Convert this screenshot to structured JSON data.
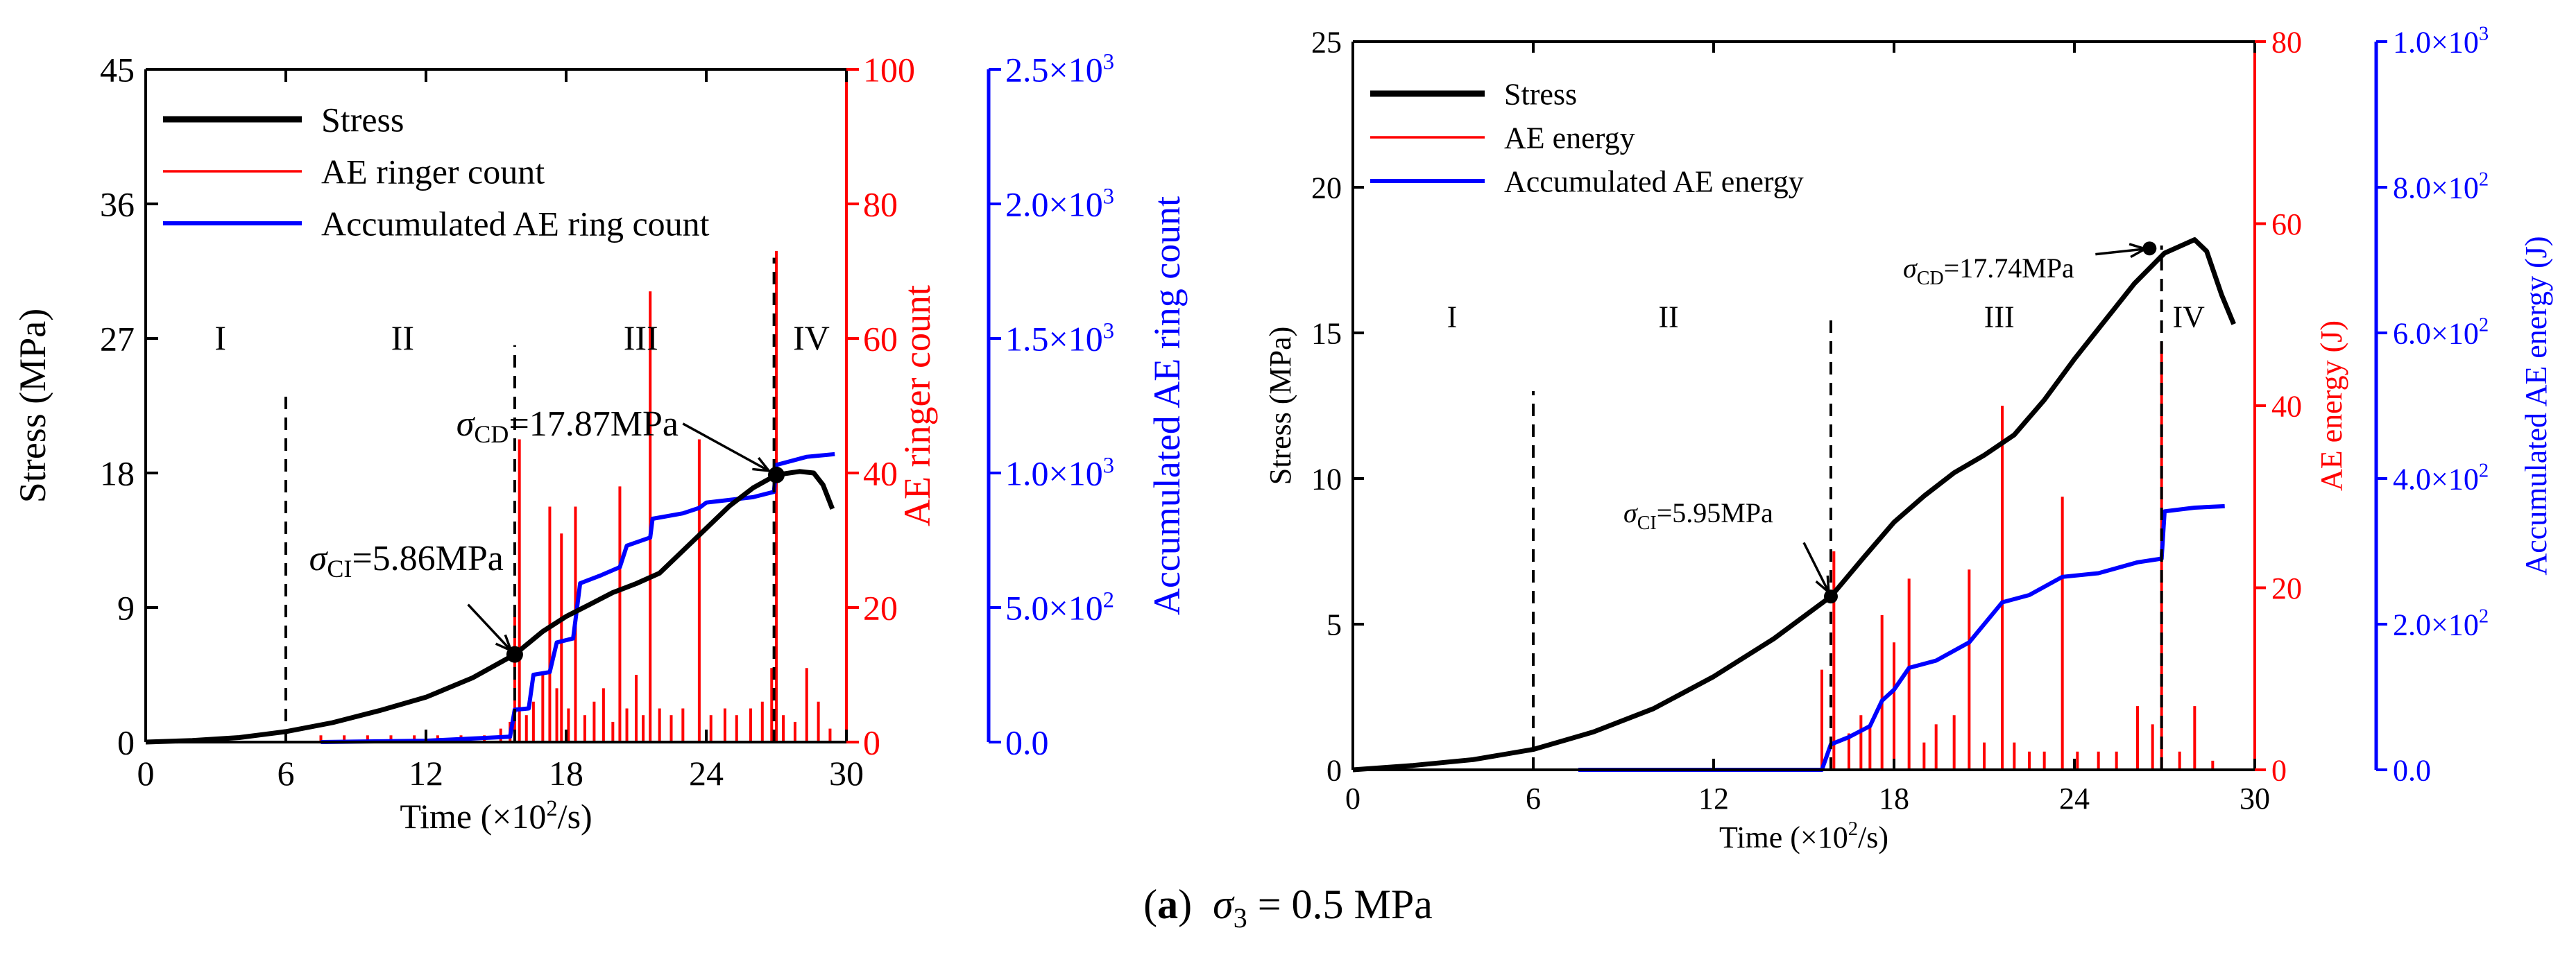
{
  "caption": {
    "label": "a",
    "open": "(",
    "close": ")",
    "symbol": "σ",
    "subscript": "3",
    "value": " = 0.5 MPa"
  },
  "colors": {
    "stress": "#000000",
    "ae": "#ff0000",
    "accum": "#0000ff"
  },
  "chart_data": [
    {
      "type": "line",
      "xlabel_main": "Time (×10",
      "xlabel_sup": "2",
      "xlabel_end": "/s)",
      "ylabel_left": "Stress (MPa)",
      "ylabel_right1": "AE ringer count",
      "ylabel_right2": "Accumulated AE ring count",
      "xlim": [
        0,
        30
      ],
      "ylim_left": [
        0,
        45
      ],
      "ylim_right1": [
        0,
        100
      ],
      "ylim_right2": [
        0,
        2500
      ],
      "xticks": [
        "0",
        "6",
        "12",
        "18",
        "24",
        "30"
      ],
      "xtick_values": [
        0,
        6,
        12,
        18,
        24,
        30
      ],
      "yticks_left": [
        "0",
        "9",
        "18",
        "27",
        "36",
        "45"
      ],
      "yticks_left_values": [
        0,
        9,
        18,
        27,
        36,
        45
      ],
      "yticks_right1": [
        "0",
        "20",
        "40",
        "60",
        "80",
        "100"
      ],
      "yticks_right1_values": [
        0,
        20,
        40,
        60,
        80,
        100
      ],
      "yticks_right2": [
        "0.0",
        "5.0×10",
        "1.0×10",
        "1.5×10",
        "2.0×10",
        "2.5×10"
      ],
      "yticks_right2_sup": [
        "",
        "2",
        "3",
        "3",
        "3",
        "3"
      ],
      "yticks_right2_values": [
        0,
        500,
        1000,
        1500,
        2000,
        2500
      ],
      "legend": [
        "Stress",
        "AE ringer count",
        "Accumulated AE ring count"
      ],
      "stages": [
        {
          "label": "I",
          "x": 3.2
        },
        {
          "label": "II",
          "x": 11.0
        },
        {
          "label": "III",
          "x": 21.2
        },
        {
          "label": "IV",
          "x": 28.5
        }
      ],
      "stage_dividers": [
        6.0,
        15.8,
        26.9
      ],
      "annotations": [
        {
          "sym": "σ",
          "sub": "CI",
          "text": "=5.86MPa",
          "x": 15.8,
          "y": 5.86,
          "tx": 7.0,
          "ty": 11.5
        },
        {
          "sym": "σ",
          "sub": "CD",
          "text": "=17.87MPa",
          "x": 27.0,
          "y": 17.87,
          "tx": 13.3,
          "ty": 20.5
        }
      ],
      "series": [
        {
          "name": "Stress",
          "axis": "left",
          "points": [
            [
              0,
              0
            ],
            [
              2,
              0.1
            ],
            [
              4,
              0.3
            ],
            [
              6,
              0.7
            ],
            [
              8,
              1.3
            ],
            [
              10,
              2.1
            ],
            [
              12,
              3.0
            ],
            [
              14,
              4.3
            ],
            [
              15.8,
              5.86
            ],
            [
              17,
              7.4
            ],
            [
              18,
              8.4
            ],
            [
              19,
              9.2
            ],
            [
              20,
              10.0
            ],
            [
              21,
              10.6
            ],
            [
              22,
              11.3
            ],
            [
              23,
              12.8
            ],
            [
              24,
              14.3
            ],
            [
              25,
              15.8
            ],
            [
              26,
              17.0
            ],
            [
              27,
              17.87
            ],
            [
              28,
              18.1
            ],
            [
              28.6,
              18.0
            ],
            [
              29,
              17.2
            ],
            [
              29.4,
              15.6
            ]
          ]
        },
        {
          "name": "AE ringer count",
          "axis": "right1",
          "bars": [
            [
              7.5,
              1
            ],
            [
              8.5,
              1
            ],
            [
              9.5,
              1
            ],
            [
              10.5,
              1
            ],
            [
              11.5,
              1
            ],
            [
              12.5,
              1
            ],
            [
              13.5,
              1
            ],
            [
              14.5,
              1
            ],
            [
              15.2,
              2
            ],
            [
              15.6,
              3
            ],
            [
              15.8,
              20
            ],
            [
              16.0,
              45
            ],
            [
              16.3,
              4
            ],
            [
              16.6,
              6
            ],
            [
              17.0,
              10
            ],
            [
              17.3,
              35
            ],
            [
              17.6,
              8
            ],
            [
              17.8,
              31
            ],
            [
              18.1,
              5
            ],
            [
              18.4,
              35
            ],
            [
              18.8,
              4
            ],
            [
              19.2,
              6
            ],
            [
              19.6,
              8
            ],
            [
              20.0,
              3
            ],
            [
              20.3,
              38
            ],
            [
              20.6,
              5
            ],
            [
              21.0,
              10
            ],
            [
              21.3,
              4
            ],
            [
              21.6,
              67
            ],
            [
              22.0,
              5
            ],
            [
              22.5,
              4
            ],
            [
              23.0,
              5
            ],
            [
              23.7,
              45
            ],
            [
              24.2,
              4
            ],
            [
              24.8,
              5
            ],
            [
              25.3,
              4
            ],
            [
              25.9,
              5
            ],
            [
              26.4,
              6
            ],
            [
              26.8,
              11
            ],
            [
              27.0,
              73
            ],
            [
              27.3,
              4
            ],
            [
              27.8,
              3
            ],
            [
              28.3,
              11
            ],
            [
              28.8,
              6
            ],
            [
              29.3,
              2
            ]
          ]
        },
        {
          "name": "Accumulated AE ring count",
          "axis": "right2",
          "points": [
            [
              7.5,
              0
            ],
            [
              12,
              5
            ],
            [
              15.6,
              20
            ],
            [
              15.8,
              120
            ],
            [
              16.4,
              125
            ],
            [
              16.6,
              250
            ],
            [
              17.3,
              260
            ],
            [
              17.6,
              370
            ],
            [
              18.3,
              385
            ],
            [
              18.6,
              590
            ],
            [
              19.5,
              620
            ],
            [
              20.3,
              650
            ],
            [
              20.6,
              730
            ],
            [
              21.6,
              760
            ],
            [
              21.7,
              830
            ],
            [
              23.0,
              850
            ],
            [
              23.7,
              870
            ],
            [
              24.0,
              890
            ],
            [
              26.0,
              910
            ],
            [
              26.9,
              930
            ],
            [
              27.0,
              1030
            ],
            [
              28.3,
              1060
            ],
            [
              29.5,
              1070
            ]
          ]
        }
      ]
    },
    {
      "type": "line",
      "xlabel_main": "Time (×10",
      "xlabel_sup": "2",
      "xlabel_end": "/s)",
      "ylabel_left": "Stress (MPa)",
      "ylabel_right1": "AE energy (J)",
      "ylabel_right2": "Accumulated AE energy (J)",
      "xlim": [
        0,
        30
      ],
      "ylim_left": [
        0,
        25
      ],
      "ylim_right1": [
        0,
        80
      ],
      "ylim_right2": [
        0,
        1000
      ],
      "xticks": [
        "0",
        "6",
        "12",
        "18",
        "24",
        "30"
      ],
      "xtick_values": [
        0,
        6,
        12,
        18,
        24,
        30
      ],
      "yticks_left": [
        "0",
        "5",
        "10",
        "15",
        "20",
        "25"
      ],
      "yticks_left_values": [
        0,
        5,
        10,
        15,
        20,
        25
      ],
      "yticks_right1": [
        "0",
        "20",
        "40",
        "60",
        "80"
      ],
      "yticks_right1_values": [
        0,
        20,
        40,
        60,
        80
      ],
      "yticks_right2": [
        "0.0",
        "2.0×10",
        "4.0×10",
        "6.0×10",
        "8.0×10",
        "1.0×10"
      ],
      "yticks_right2_sup": [
        "",
        "2",
        "2",
        "2",
        "2",
        "3"
      ],
      "yticks_right2_values": [
        0,
        200,
        400,
        600,
        800,
        1000
      ],
      "legend": [
        "Stress",
        "AE energy",
        "Accumulated AE energy"
      ],
      "stages": [
        {
          "label": "I",
          "x": 3.3
        },
        {
          "label": "II",
          "x": 10.5
        },
        {
          "label": "III",
          "x": 21.5
        },
        {
          "label": "IV",
          "x": 27.8
        }
      ],
      "stage_dividers": [
        6.0,
        15.9,
        26.9
      ],
      "annotations": [
        {
          "sym": "σ",
          "sub": "CI",
          "text": "=5.95MPa",
          "x": 15.9,
          "y": 5.95,
          "tx": 9.0,
          "ty": 8.5
        },
        {
          "sym": "σ",
          "sub": "CD",
          "text": "=17.74MPa",
          "x": 26.5,
          "y": 17.9,
          "tx": 18.3,
          "ty": 16.9
        }
      ],
      "series": [
        {
          "name": "Stress",
          "axis": "left",
          "points": [
            [
              0,
              0
            ],
            [
              2,
              0.15
            ],
            [
              4,
              0.35
            ],
            [
              6,
              0.7
            ],
            [
              8,
              1.3
            ],
            [
              10,
              2.1
            ],
            [
              12,
              3.2
            ],
            [
              14,
              4.5
            ],
            [
              15.9,
              5.95
            ],
            [
              17,
              7.3
            ],
            [
              18,
              8.5
            ],
            [
              19,
              9.4
            ],
            [
              20,
              10.2
            ],
            [
              21,
              10.8
            ],
            [
              22,
              11.5
            ],
            [
              23,
              12.7
            ],
            [
              24,
              14.1
            ],
            [
              25,
              15.4
            ],
            [
              26,
              16.7
            ],
            [
              27,
              17.74
            ],
            [
              28,
              18.2
            ],
            [
              28.4,
              17.8
            ],
            [
              28.9,
              16.3
            ],
            [
              29.3,
              15.3
            ]
          ]
        },
        {
          "name": "AE energy",
          "axis": "right1",
          "bars": [
            [
              15.6,
              11
            ],
            [
              16.0,
              24
            ],
            [
              16.5,
              4
            ],
            [
              16.9,
              6
            ],
            [
              17.2,
              5
            ],
            [
              17.6,
              17
            ],
            [
              18.0,
              14
            ],
            [
              18.5,
              21
            ],
            [
              19.0,
              3
            ],
            [
              19.4,
              5
            ],
            [
              20.0,
              6
            ],
            [
              20.5,
              22
            ],
            [
              21.0,
              3
            ],
            [
              21.6,
              40
            ],
            [
              22.0,
              3
            ],
            [
              22.5,
              2
            ],
            [
              23.0,
              2
            ],
            [
              23.6,
              30
            ],
            [
              24.1,
              2
            ],
            [
              24.8,
              2
            ],
            [
              25.4,
              2
            ],
            [
              26.1,
              7
            ],
            [
              26.6,
              5
            ],
            [
              26.9,
              47
            ],
            [
              27.5,
              2
            ],
            [
              28.0,
              7
            ],
            [
              28.6,
              1
            ]
          ]
        },
        {
          "name": "Accumulated AE energy",
          "axis": "right2",
          "points": [
            [
              7.5,
              0
            ],
            [
              15.6,
              0
            ],
            [
              15.9,
              35
            ],
            [
              16.5,
              45
            ],
            [
              17.2,
              60
            ],
            [
              17.6,
              95
            ],
            [
              18.0,
              110
            ],
            [
              18.5,
              140
            ],
            [
              19.4,
              150
            ],
            [
              20.5,
              175
            ],
            [
              21.6,
              230
            ],
            [
              22.5,
              240
            ],
            [
              23.6,
              265
            ],
            [
              24.8,
              270
            ],
            [
              26.1,
              285
            ],
            [
              26.9,
              290
            ],
            [
              27.0,
              355
            ],
            [
              28.0,
              360
            ],
            [
              29.0,
              362
            ]
          ]
        }
      ]
    }
  ]
}
